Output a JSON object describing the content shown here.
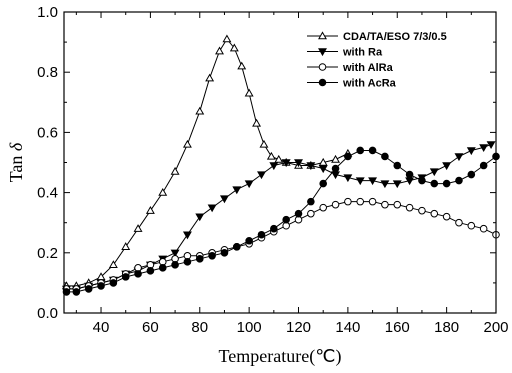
{
  "chart_data": {
    "type": "line",
    "title": "",
    "xlabel": "Temperature(℃)",
    "ylabel_main": "Tan ",
    "ylabel_symbol": "δ",
    "xlim": [
      25,
      200
    ],
    "ylim": [
      0.0,
      1.0
    ],
    "xticks": [
      40,
      60,
      80,
      100,
      120,
      140,
      160,
      180,
      200
    ],
    "xtick_labels": [
      "40",
      "60",
      "80",
      "100",
      "120",
      "140",
      "160",
      "180",
      "200"
    ],
    "yticks": [
      0.0,
      0.2,
      0.4,
      0.6,
      0.8,
      1.0
    ],
    "ytick_labels": [
      "0.0",
      "0.2",
      "0.4",
      "0.6",
      "0.8",
      "1.0"
    ],
    "grid": false,
    "legend_position": "top-right",
    "series": [
      {
        "name": "CDA/TA/ESO 7/3/0.5",
        "marker": "open-triangle-up",
        "x": [
          26,
          30,
          35,
          40,
          45,
          50,
          55,
          60,
          65,
          70,
          75,
          80,
          84,
          88,
          91,
          94,
          97,
          100,
          103,
          106,
          109,
          112,
          115,
          120,
          125,
          130,
          135,
          140
        ],
        "y": [
          0.09,
          0.09,
          0.1,
          0.12,
          0.16,
          0.22,
          0.28,
          0.34,
          0.4,
          0.47,
          0.56,
          0.67,
          0.78,
          0.87,
          0.91,
          0.88,
          0.82,
          0.73,
          0.63,
          0.56,
          0.52,
          0.51,
          0.5,
          0.49,
          0.49,
          0.5,
          0.51,
          0.53
        ]
      },
      {
        "name": "with Ra",
        "marker": "filled-triangle-down",
        "x": [
          26,
          30,
          35,
          40,
          45,
          50,
          55,
          60,
          65,
          70,
          75,
          80,
          85,
          90,
          95,
          100,
          105,
          110,
          115,
          120,
          125,
          130,
          135,
          140,
          145,
          150,
          155,
          160,
          165,
          170,
          175,
          180,
          185,
          190,
          195,
          198
        ],
        "y": [
          0.08,
          0.08,
          0.09,
          0.1,
          0.11,
          0.13,
          0.14,
          0.16,
          0.18,
          0.2,
          0.26,
          0.32,
          0.35,
          0.38,
          0.41,
          0.43,
          0.46,
          0.49,
          0.5,
          0.5,
          0.49,
          0.48,
          0.46,
          0.45,
          0.44,
          0.44,
          0.43,
          0.43,
          0.44,
          0.45,
          0.47,
          0.49,
          0.52,
          0.54,
          0.55,
          0.56
        ]
      },
      {
        "name": "with AlRa",
        "marker": "open-circle",
        "x": [
          26,
          30,
          35,
          40,
          45,
          50,
          55,
          60,
          65,
          70,
          75,
          80,
          85,
          90,
          95,
          100,
          105,
          110,
          115,
          120,
          125,
          130,
          135,
          140,
          145,
          150,
          155,
          160,
          165,
          170,
          175,
          180,
          185,
          190,
          195,
          200
        ],
        "y": [
          0.08,
          0.08,
          0.09,
          0.1,
          0.11,
          0.13,
          0.15,
          0.16,
          0.17,
          0.18,
          0.19,
          0.19,
          0.2,
          0.21,
          0.22,
          0.23,
          0.25,
          0.27,
          0.29,
          0.31,
          0.33,
          0.35,
          0.36,
          0.37,
          0.37,
          0.37,
          0.36,
          0.36,
          0.35,
          0.34,
          0.33,
          0.32,
          0.3,
          0.29,
          0.28,
          0.26
        ]
      },
      {
        "name": "with AcRa",
        "marker": "filled-circle",
        "x": [
          26,
          30,
          35,
          40,
          45,
          50,
          55,
          60,
          65,
          70,
          75,
          80,
          85,
          90,
          95,
          100,
          105,
          110,
          115,
          120,
          125,
          130,
          135,
          140,
          145,
          150,
          155,
          160,
          165,
          170,
          175,
          180,
          185,
          190,
          195,
          200
        ],
        "y": [
          0.07,
          0.07,
          0.08,
          0.09,
          0.1,
          0.12,
          0.13,
          0.14,
          0.15,
          0.16,
          0.17,
          0.18,
          0.19,
          0.2,
          0.22,
          0.24,
          0.26,
          0.28,
          0.31,
          0.33,
          0.37,
          0.43,
          0.48,
          0.52,
          0.54,
          0.54,
          0.52,
          0.49,
          0.46,
          0.44,
          0.43,
          0.43,
          0.44,
          0.46,
          0.49,
          0.52
        ]
      }
    ]
  }
}
